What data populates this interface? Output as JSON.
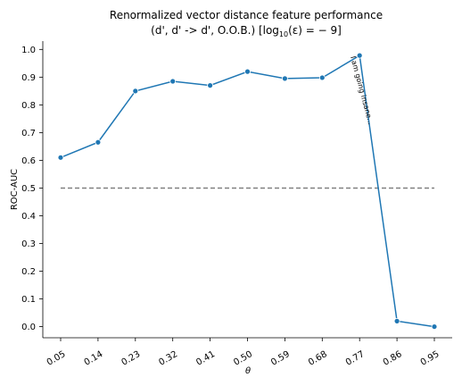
{
  "chart_data": {
    "type": "line",
    "title_line1": "Renormalized vector distance feature performance",
    "title_line2_prefix": "(d', d' -> d', O.O.B.) [log",
    "title_line2_sub": "10",
    "title_line2_suffix": "(ε) = − 9]",
    "xlabel": "θ",
    "ylabel": "ROC-AUC",
    "categories": [
      "0.05",
      "0.14",
      "0.23",
      "0.32",
      "0.41",
      "0.50",
      "0.59",
      "0.68",
      "0.77",
      "0.86",
      "0.95"
    ],
    "series": [
      {
        "values": [
          0.61,
          0.665,
          0.85,
          0.885,
          0.87,
          0.92,
          0.895,
          0.898,
          0.978,
          0.02,
          0.0
        ]
      }
    ],
    "reference_line": {
      "y": 0.5,
      "style": "dashed"
    },
    "ylim": [
      -0.04,
      1.03
    ],
    "yticks": [
      0.0,
      0.1,
      0.2,
      0.3,
      0.4,
      0.5,
      0.6,
      0.7,
      0.8,
      0.9,
      1.0
    ],
    "ytick_labels": [
      "0.0",
      "0.1",
      "0.2",
      "0.3",
      "0.4",
      "0.5",
      "0.6",
      "0.7",
      "0.8",
      "0.9",
      "1.0"
    ],
    "annotation": {
      "text": "I am going insane...",
      "category": "0.77",
      "y": 0.85
    },
    "grid": false,
    "line_color": "#1f77b4",
    "reference_color": "#808080"
  }
}
